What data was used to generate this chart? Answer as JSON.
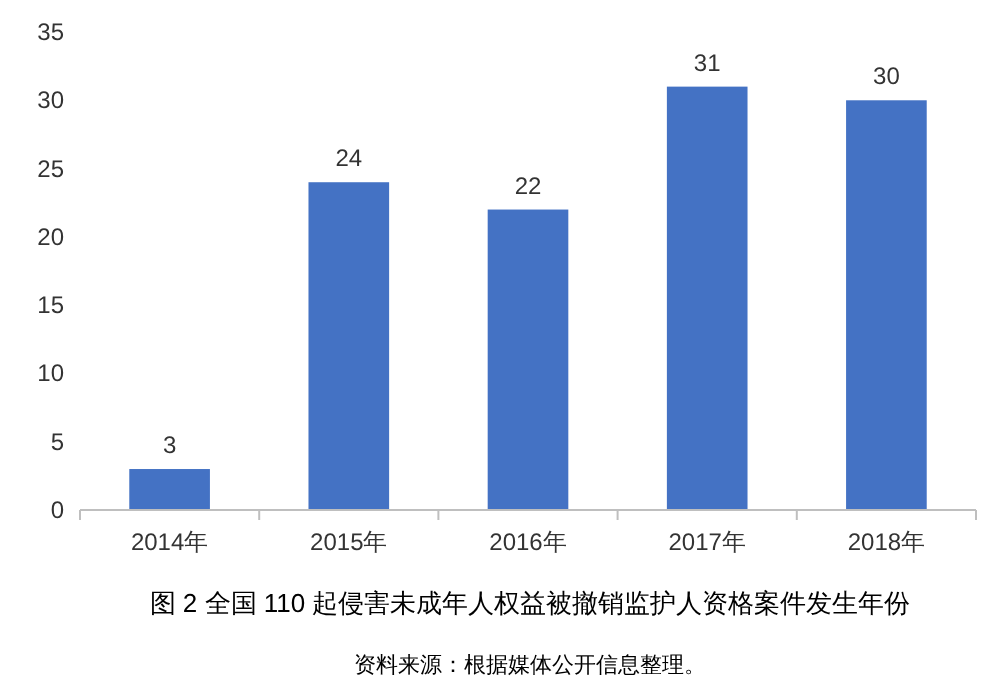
{
  "chart_data": {
    "type": "bar",
    "title": "图 2  全国 110 起侵害未成年人权益被撤销监护人资格案件发生年份",
    "annotations": [
      "资料来源：根据媒体公开信息整理。"
    ],
    "categories": [
      "2014年",
      "2015年",
      "2016年",
      "2017年",
      "2018年"
    ],
    "values": [
      3,
      24,
      22,
      31,
      30
    ],
    "color": "#4472c4",
    "ylim": [
      0,
      35
    ],
    "yticks": [
      0,
      5,
      10,
      15,
      20,
      25,
      30,
      35
    ],
    "grid": false,
    "data_labels": true
  }
}
